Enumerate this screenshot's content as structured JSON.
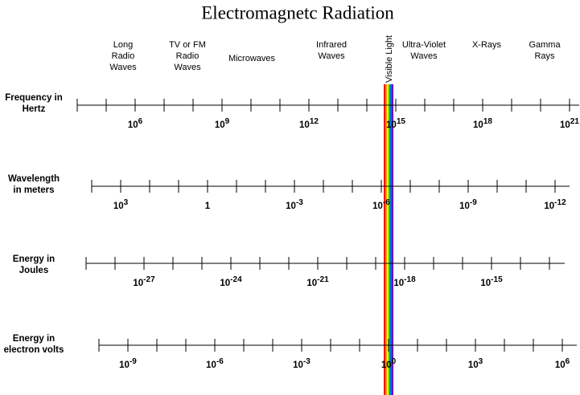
{
  "title": "Electromagnetc Radiation",
  "visible_label": "Visible Light",
  "regions": [
    {
      "lines": [
        "Long",
        "Radio",
        "Waves"
      ]
    },
    {
      "lines": [
        "TV or FM",
        "Radio",
        "Waves"
      ]
    },
    {
      "lines": [
        "Microwaves"
      ]
    },
    {
      "lines": [
        "Infrared",
        "Waves"
      ]
    },
    {
      "lines": [
        "Ultra-Violet",
        "Waves"
      ]
    },
    {
      "lines": [
        "X-Rays"
      ]
    },
    {
      "lines": [
        "Gamma",
        "Rays"
      ]
    }
  ],
  "scales": [
    {
      "name": [
        "Frequency in",
        "Hertz"
      ],
      "labels": [
        {
          "base": "10",
          "exp": "6"
        },
        {
          "base": "10",
          "exp": "9"
        },
        {
          "base": "10",
          "exp": "12"
        },
        {
          "base": "10",
          "exp": "15"
        },
        {
          "base": "10",
          "exp": "18"
        },
        {
          "base": "10",
          "exp": "21"
        }
      ]
    },
    {
      "name": [
        "Wavelength",
        "in meters"
      ],
      "labels": [
        {
          "base": "10",
          "exp": "3"
        },
        {
          "base": "1"
        },
        {
          "base": "10",
          "exp": "-3"
        },
        {
          "base": "10",
          "exp": "-6"
        },
        {
          "base": "10",
          "exp": "-9"
        },
        {
          "base": "10",
          "exp": "-12"
        }
      ]
    },
    {
      "name": [
        "Energy in",
        "Joules"
      ],
      "labels": [
        {
          "base": "10",
          "exp": "-27"
        },
        {
          "base": "10",
          "exp": "-24"
        },
        {
          "base": "10",
          "exp": "-21"
        },
        {
          "base": "10",
          "exp": "-18"
        },
        {
          "base": "10",
          "exp": "-15"
        }
      ]
    },
    {
      "name": [
        "Energy in",
        "electron volts"
      ],
      "labels": [
        {
          "base": "10",
          "exp": "-9"
        },
        {
          "base": "10",
          "exp": "-6"
        },
        {
          "base": "10",
          "exp": "-3"
        },
        {
          "base": "10",
          "exp": "0"
        },
        {
          "base": "10",
          "exp": "3"
        },
        {
          "base": "10",
          "exp": "6"
        }
      ]
    }
  ]
}
